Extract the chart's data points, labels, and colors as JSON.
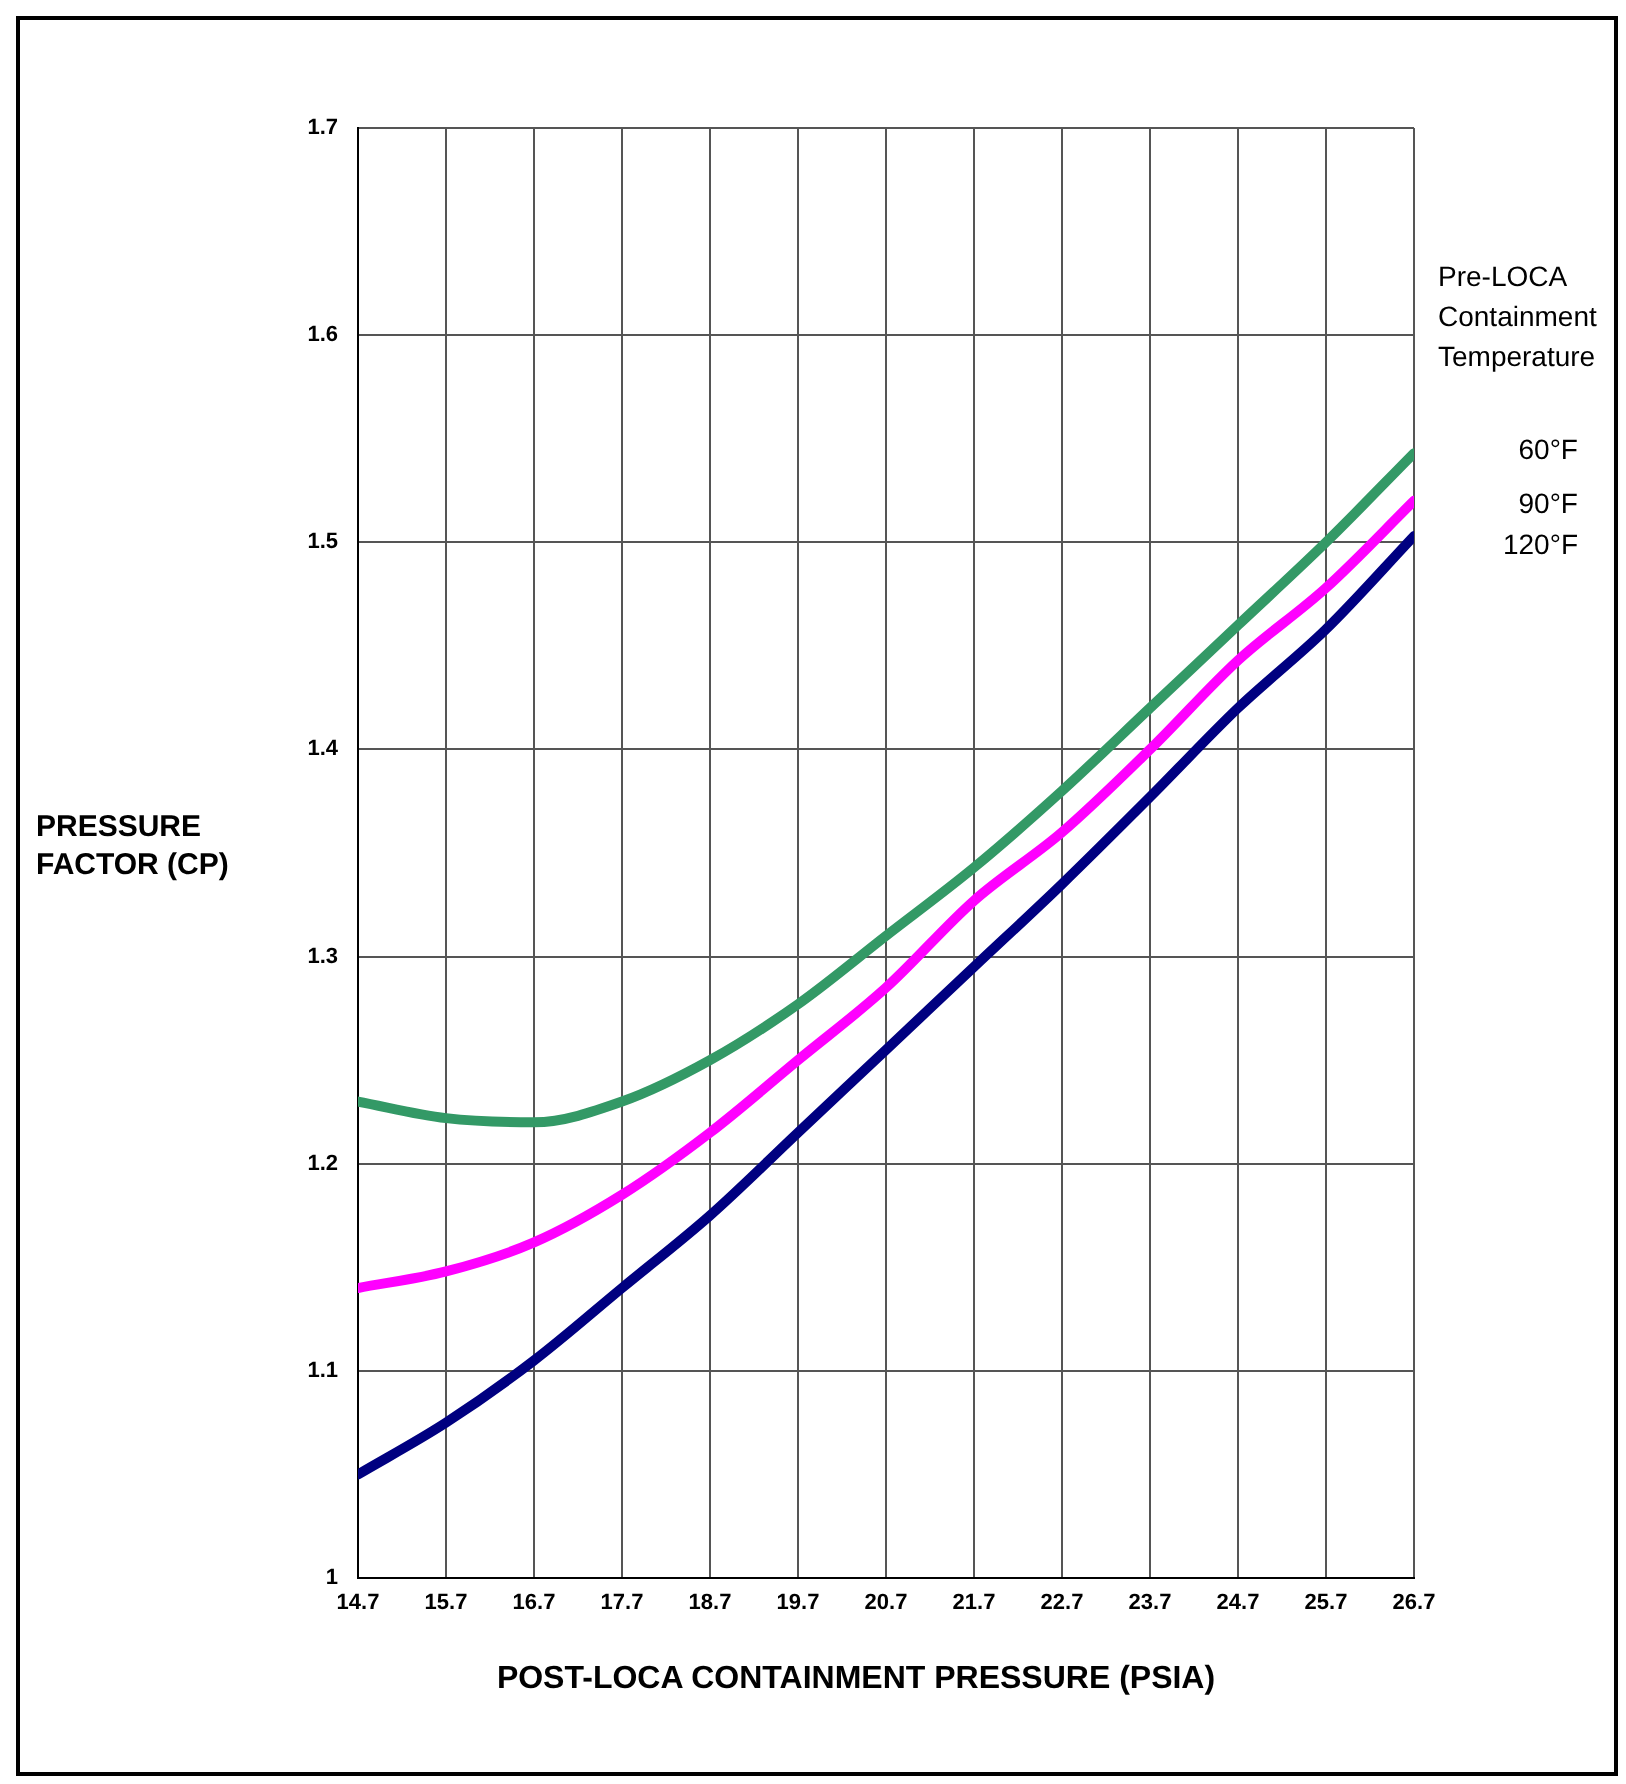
{
  "chart_data": {
    "type": "line",
    "xlabel": "POST-LOCA CONTAINMENT PRESSURE (PSIA)",
    "ylabel": "PRESSURE FACTOR (CP)",
    "legend_title": "Pre-LOCA Containment Temperature",
    "legend": "right",
    "grid": true,
    "marker": "none",
    "line_style": "solid",
    "x": [
      14.7,
      15.7,
      16.7,
      17.7,
      18.7,
      19.7,
      20.7,
      21.7,
      22.7,
      23.7,
      24.7,
      25.7,
      26.7
    ],
    "xlim": [
      14.7,
      26.7
    ],
    "xticks": [
      {
        "value": 14.7,
        "label": "14.7"
      },
      {
        "value": 15.7,
        "label": "15.7"
      },
      {
        "value": 16.7,
        "label": "16.7"
      },
      {
        "value": 17.7,
        "label": "17.7"
      },
      {
        "value": 18.7,
        "label": "18.7"
      },
      {
        "value": 19.7,
        "label": "19.7"
      },
      {
        "value": 20.7,
        "label": "20.7"
      },
      {
        "value": 21.7,
        "label": "21.7"
      },
      {
        "value": 22.7,
        "label": "22.7"
      },
      {
        "value": 23.7,
        "label": "23.7"
      },
      {
        "value": 24.7,
        "label": "24.7"
      },
      {
        "value": 25.7,
        "label": "25.7"
      },
      {
        "value": 26.7,
        "label": "26.7"
      }
    ],
    "ylim": [
      1,
      1.7
    ],
    "yticks": [
      1,
      1.1,
      1.2,
      1.3,
      1.4,
      1.5,
      1.6,
      1.7
    ],
    "series": [
      {
        "name": "60°F",
        "color": "#339966",
        "values": [
          1.23,
          1.222,
          1.22,
          1.23,
          1.25,
          1.277,
          1.31,
          1.343,
          1.38,
          1.42,
          1.46,
          1.5,
          1.543
        ]
      },
      {
        "name": "90°F",
        "color": "#ff00ff",
        "values": [
          1.14,
          1.148,
          1.162,
          1.185,
          1.215,
          1.25,
          1.285,
          1.327,
          1.36,
          1.4,
          1.443,
          1.478,
          1.52
        ]
      },
      {
        "name": "120°F",
        "color": "#000080",
        "values": [
          1.05,
          1.075,
          1.105,
          1.14,
          1.175,
          1.215,
          1.255,
          1.295,
          1.335,
          1.377,
          1.42,
          1.458,
          1.503
        ]
      }
    ]
  }
}
